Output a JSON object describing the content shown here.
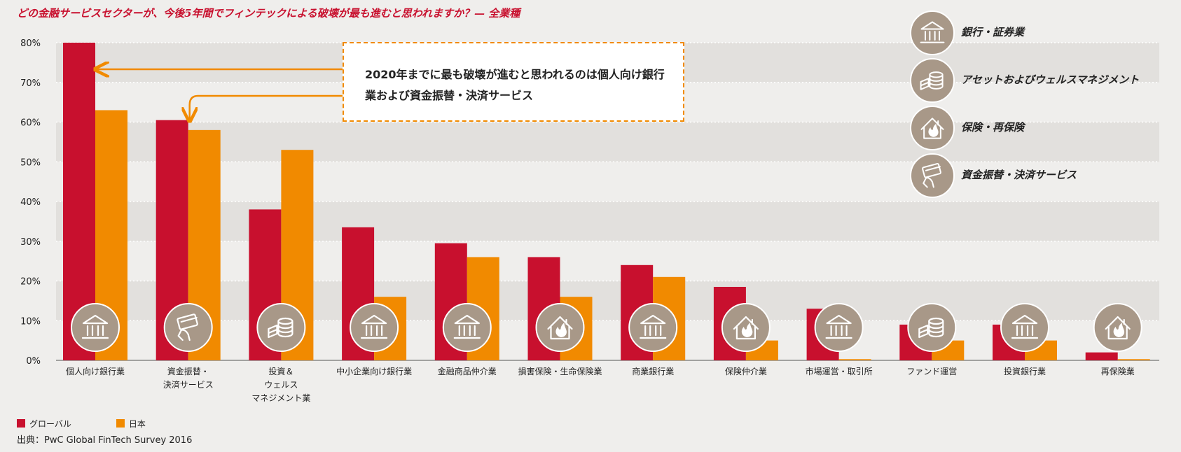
{
  "chart_data": {
    "type": "bar",
    "title": "どの金融サービスセクターが、今後5年間でフィンテックによる破壊が最も進むと思われますか？— 全業種",
    "xlabel": "",
    "ylabel": "",
    "ylim": [
      0,
      80
    ],
    "yticks": [
      "0%",
      "10%",
      "20%",
      "30%",
      "40%",
      "50%",
      "60%",
      "70%",
      "80%"
    ],
    "grid": true,
    "legend_position": "bottom-left",
    "categories": [
      "個人向け銀行業",
      "資金振替・\n決済サービス",
      "投資＆\nウェルス\nマネジメント業",
      "中小企業向け銀行業",
      "金融商品仲介業",
      "損害保険・生命保険業",
      "商業銀行業",
      "保険仲介業",
      "市場運営・取引所",
      "ファンド運営",
      "投資銀行業",
      "再保険業"
    ],
    "category_icons": [
      "bank-icon",
      "card-icon",
      "coins-icon",
      "bank-icon",
      "bank-icon",
      "house-fire-icon",
      "bank-icon",
      "house-fire-icon",
      "bank-icon",
      "coins-icon",
      "bank-icon",
      "house-fire-icon"
    ],
    "series": [
      {
        "name": "グローバル",
        "color": "#c8102e",
        "values": [
          80,
          60.5,
          38,
          33.5,
          29.5,
          26,
          24,
          18.5,
          13,
          9,
          9,
          2
        ]
      },
      {
        "name": "日本",
        "color": "#f18a00",
        "values": [
          63,
          58,
          53,
          16,
          26,
          16,
          21,
          5,
          0.3,
          5,
          5,
          0.3
        ]
      }
    ],
    "annotation": {
      "text": "2020年までに最も破壊が進むと思われるのは個人向け銀行業および資金振替・決済サービス",
      "targets": [
        0,
        1
      ]
    },
    "icon_legend": [
      {
        "icon": "bank-icon",
        "label": "銀行・証券業"
      },
      {
        "icon": "coins-icon",
        "label": "アセットおよびウェルスマネジメント"
      },
      {
        "icon": "house-fire-icon",
        "label": "保険・再保険"
      },
      {
        "icon": "card-icon",
        "label": "資金振替・決済サービス"
      }
    ],
    "source": "出典：PwC Global FinTech Survey 2016"
  }
}
